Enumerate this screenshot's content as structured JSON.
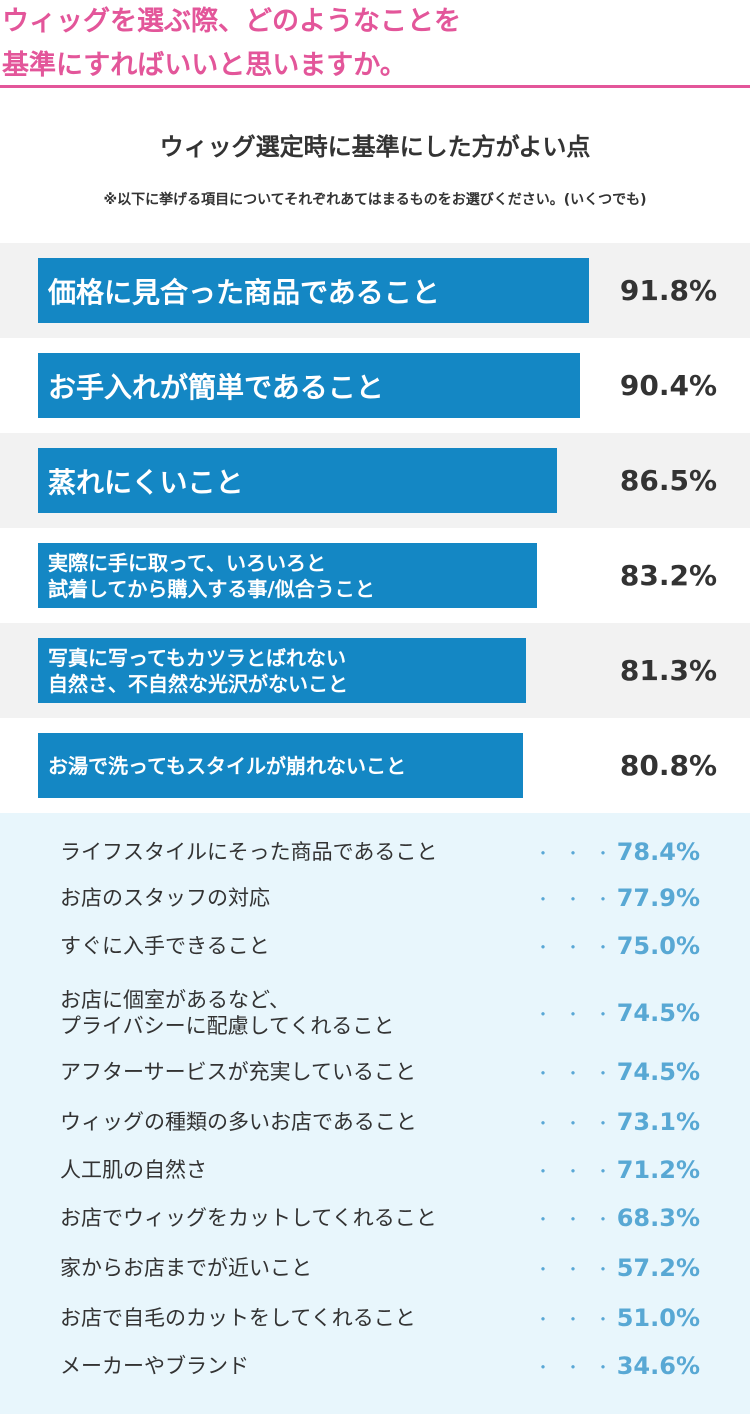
{
  "header": {
    "title": "ウィッグを選ぶ際、どのようなことを\n基準にすればいいと思いますか。",
    "accent_color": "#e3569a"
  },
  "chart_data": {
    "type": "bar",
    "title": "ウィッグ選定時に基準にした方がよい点",
    "subtitle": "※以下に挙げる項目についてそれぞれあてはまるものをお選びください。(いくつでも)",
    "unit": "%",
    "bar_color": "#1487c4",
    "top_items": [
      {
        "label": "価格に見合った商品であること",
        "value": 91.8,
        "display": "91.8%"
      },
      {
        "label": "お手入れが簡単であること",
        "value": 90.4,
        "display": "90.4%"
      },
      {
        "label": "蒸れにくいこと",
        "value": 86.5,
        "display": "86.5%"
      },
      {
        "label": "実際に手に取って、いろいろと\n試着してから購入する事/似合うこと",
        "value": 83.2,
        "display": "83.2%"
      },
      {
        "label": "写真に写ってもカツラとばれない\n自然さ、不自然な光沢がないこと",
        "value": 81.3,
        "display": "81.3%"
      },
      {
        "label": "お湯で洗ってもスタイルが崩れないこと",
        "value": 80.8,
        "display": "80.8%"
      }
    ],
    "list_items": [
      {
        "label": "ライフスタイルにそった商品であること",
        "value": 78.4,
        "display": "78.4%"
      },
      {
        "label": "お店のスタッフの対応",
        "value": 77.9,
        "display": "77.9%"
      },
      {
        "label": "すぐに入手できること",
        "value": 75.0,
        "display": "75.0%"
      },
      {
        "label": "お店に個室があるなど、\nプライバシーに配慮してくれること",
        "value": 74.5,
        "display": "74.5%"
      },
      {
        "label": "アフターサービスが充実していること",
        "value": 74.5,
        "display": "74.5%"
      },
      {
        "label": "ウィッグの種類の多いお店であること",
        "value": 73.1,
        "display": "73.1%"
      },
      {
        "label": "人工肌の自然さ",
        "value": 71.2,
        "display": "71.2%"
      },
      {
        "label": "お店でウィッグをカットしてくれること",
        "value": 68.3,
        "display": "68.3%"
      },
      {
        "label": "家からお店までが近いこと",
        "value": 57.2,
        "display": "57.2%"
      },
      {
        "label": "お店で自毛のカットをしてくれること",
        "value": 51.0,
        "display": "51.0%"
      },
      {
        "label": "メーカーやブランド",
        "value": 34.6,
        "display": "34.6%"
      }
    ],
    "leader": "・・・"
  }
}
